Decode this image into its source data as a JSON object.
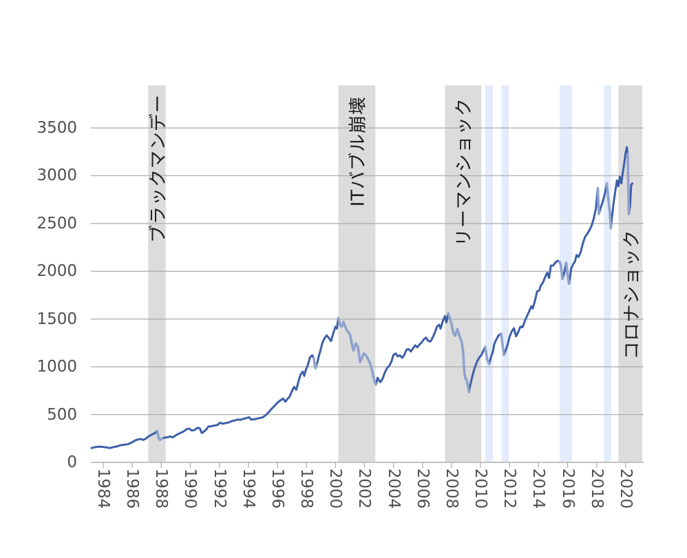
{
  "chart_data": {
    "type": "line",
    "title": "",
    "xlabel": "",
    "ylabel": "",
    "grid": "horizontal",
    "legend": "none",
    "ylim": [
      0,
      3500
    ],
    "xlim": [
      1983.15,
      2021.15
    ],
    "y_ticks": [
      0,
      500,
      1000,
      1500,
      2000,
      2500,
      3000,
      3500
    ],
    "x_ticks": [
      1984,
      1986,
      1988,
      1990,
      1992,
      1994,
      1996,
      1998,
      2000,
      2002,
      2004,
      2006,
      2008,
      2010,
      2012,
      2014,
      2016,
      2018,
      2020
    ],
    "series": [
      {
        "name": "index-price-line",
        "points": [
          [
            1983.2,
            150
          ],
          [
            1983.45,
            160
          ],
          [
            1983.7,
            165
          ],
          [
            1983.95,
            162
          ],
          [
            1984.2,
            157
          ],
          [
            1984.45,
            150
          ],
          [
            1984.7,
            160
          ],
          [
            1984.95,
            167
          ],
          [
            1985.2,
            180
          ],
          [
            1985.45,
            185
          ],
          [
            1985.7,
            190
          ],
          [
            1985.95,
            207
          ],
          [
            1986.2,
            230
          ],
          [
            1986.4,
            240
          ],
          [
            1986.6,
            245
          ],
          [
            1986.75,
            235
          ],
          [
            1986.95,
            250
          ],
          [
            1987.15,
            275
          ],
          [
            1987.35,
            290
          ],
          [
            1987.55,
            305
          ],
          [
            1987.72,
            330
          ],
          [
            1987.82,
            248
          ],
          [
            1987.92,
            235
          ],
          [
            1988.05,
            252
          ],
          [
            1988.2,
            258
          ],
          [
            1988.4,
            262
          ],
          [
            1988.6,
            270
          ],
          [
            1988.8,
            262
          ],
          [
            1988.95,
            278
          ],
          [
            1989.15,
            297
          ],
          [
            1989.35,
            310
          ],
          [
            1989.55,
            325
          ],
          [
            1989.75,
            348
          ],
          [
            1989.95,
            352
          ],
          [
            1990.1,
            332
          ],
          [
            1990.3,
            340
          ],
          [
            1990.5,
            362
          ],
          [
            1990.65,
            356
          ],
          [
            1990.8,
            306
          ],
          [
            1990.95,
            325
          ],
          [
            1991.1,
            345
          ],
          [
            1991.25,
            375
          ],
          [
            1991.45,
            378
          ],
          [
            1991.65,
            385
          ],
          [
            1991.85,
            390
          ],
          [
            1992.05,
            415
          ],
          [
            1992.25,
            405
          ],
          [
            1992.45,
            412
          ],
          [
            1992.65,
            418
          ],
          [
            1992.85,
            432
          ],
          [
            1993.05,
            438
          ],
          [
            1993.25,
            448
          ],
          [
            1993.45,
            445
          ],
          [
            1993.65,
            455
          ],
          [
            1993.85,
            463
          ],
          [
            1994.05,
            472
          ],
          [
            1994.2,
            448
          ],
          [
            1994.4,
            450
          ],
          [
            1994.6,
            458
          ],
          [
            1994.8,
            465
          ],
          [
            1995.0,
            472
          ],
          [
            1995.2,
            495
          ],
          [
            1995.4,
            525
          ],
          [
            1995.6,
            560
          ],
          [
            1995.8,
            590
          ],
          [
            1996.0,
            625
          ],
          [
            1996.2,
            648
          ],
          [
            1996.4,
            668
          ],
          [
            1996.55,
            635
          ],
          [
            1996.7,
            665
          ],
          [
            1996.85,
            690
          ],
          [
            1997.0,
            745
          ],
          [
            1997.15,
            790
          ],
          [
            1997.3,
            760
          ],
          [
            1997.45,
            845
          ],
          [
            1997.6,
            920
          ],
          [
            1997.75,
            950
          ],
          [
            1997.85,
            905
          ],
          [
            1997.95,
            965
          ],
          [
            1998.1,
            1020
          ],
          [
            1998.25,
            1100
          ],
          [
            1998.4,
            1120
          ],
          [
            1998.5,
            1090
          ],
          [
            1998.62,
            985
          ],
          [
            1998.72,
            1020
          ],
          [
            1998.85,
            1110
          ],
          [
            1998.95,
            1160
          ],
          [
            1999.1,
            1250
          ],
          [
            1999.25,
            1300
          ],
          [
            1999.4,
            1330
          ],
          [
            1999.55,
            1300
          ],
          [
            1999.7,
            1270
          ],
          [
            1999.85,
            1350
          ],
          [
            2000.0,
            1420
          ],
          [
            2000.1,
            1400
          ],
          [
            2000.2,
            1510
          ],
          [
            2000.3,
            1450
          ],
          [
            2000.42,
            1420
          ],
          [
            2000.55,
            1470
          ],
          [
            2000.65,
            1430
          ],
          [
            2000.8,
            1380
          ],
          [
            2001.0,
            1340
          ],
          [
            2001.12,
            1250
          ],
          [
            2001.25,
            1170
          ],
          [
            2001.4,
            1245
          ],
          [
            2001.55,
            1210
          ],
          [
            2001.7,
            1050
          ],
          [
            2001.82,
            1090
          ],
          [
            2001.95,
            1140
          ],
          [
            2002.1,
            1120
          ],
          [
            2002.25,
            1080
          ],
          [
            2002.4,
            1030
          ],
          [
            2002.55,
            950
          ],
          [
            2002.7,
            840
          ],
          [
            2002.8,
            815
          ],
          [
            2002.9,
            885
          ],
          [
            2003.0,
            860
          ],
          [
            2003.1,
            840
          ],
          [
            2003.25,
            875
          ],
          [
            2003.4,
            940
          ],
          [
            2003.55,
            985
          ],
          [
            2003.7,
            1010
          ],
          [
            2003.85,
            1050
          ],
          [
            2004.0,
            1125
          ],
          [
            2004.15,
            1140
          ],
          [
            2004.3,
            1110
          ],
          [
            2004.45,
            1120
          ],
          [
            2004.6,
            1095
          ],
          [
            2004.75,
            1125
          ],
          [
            2004.9,
            1180
          ],
          [
            2005.05,
            1185
          ],
          [
            2005.2,
            1160
          ],
          [
            2005.35,
            1195
          ],
          [
            2005.5,
            1225
          ],
          [
            2005.65,
            1205
          ],
          [
            2005.8,
            1235
          ],
          [
            2005.95,
            1255
          ],
          [
            2006.1,
            1290
          ],
          [
            2006.25,
            1305
          ],
          [
            2006.4,
            1270
          ],
          [
            2006.55,
            1265
          ],
          [
            2006.7,
            1305
          ],
          [
            2006.85,
            1360
          ],
          [
            2007.0,
            1420
          ],
          [
            2007.15,
            1440
          ],
          [
            2007.25,
            1400
          ],
          [
            2007.4,
            1480
          ],
          [
            2007.55,
            1530
          ],
          [
            2007.65,
            1465
          ],
          [
            2007.78,
            1560
          ],
          [
            2007.9,
            1500
          ],
          [
            2008.0,
            1450
          ],
          [
            2008.12,
            1360
          ],
          [
            2008.25,
            1325
          ],
          [
            2008.4,
            1395
          ],
          [
            2008.55,
            1320
          ],
          [
            2008.7,
            1260
          ],
          [
            2008.8,
            1160
          ],
          [
            2008.88,
            950
          ],
          [
            2008.95,
            880
          ],
          [
            2009.05,
            860
          ],
          [
            2009.12,
            810
          ],
          [
            2009.2,
            735
          ],
          [
            2009.3,
            815
          ],
          [
            2009.45,
            910
          ],
          [
            2009.6,
            990
          ],
          [
            2009.75,
            1050
          ],
          [
            2009.9,
            1095
          ],
          [
            2010.05,
            1120
          ],
          [
            2010.2,
            1170
          ],
          [
            2010.32,
            1210
          ],
          [
            2010.45,
            1080
          ],
          [
            2010.6,
            1030
          ],
          [
            2010.72,
            1105
          ],
          [
            2010.85,
            1160
          ],
          [
            2010.95,
            1240
          ],
          [
            2011.1,
            1290
          ],
          [
            2011.25,
            1330
          ],
          [
            2011.42,
            1345
          ],
          [
            2011.55,
            1190
          ],
          [
            2011.62,
            1125
          ],
          [
            2011.75,
            1180
          ],
          [
            2011.88,
            1240
          ],
          [
            2012.0,
            1315
          ],
          [
            2012.15,
            1370
          ],
          [
            2012.3,
            1405
          ],
          [
            2012.45,
            1320
          ],
          [
            2012.6,
            1365
          ],
          [
            2012.75,
            1420
          ],
          [
            2012.9,
            1415
          ],
          [
            2013.05,
            1480
          ],
          [
            2013.2,
            1530
          ],
          [
            2013.35,
            1580
          ],
          [
            2013.5,
            1635
          ],
          [
            2013.6,
            1610
          ],
          [
            2013.75,
            1690
          ],
          [
            2013.9,
            1790
          ],
          [
            2014.05,
            1800
          ],
          [
            2014.15,
            1850
          ],
          [
            2014.3,
            1880
          ],
          [
            2014.45,
            1940
          ],
          [
            2014.6,
            1985
          ],
          [
            2014.72,
            1930
          ],
          [
            2014.85,
            2060
          ],
          [
            2015.0,
            2060
          ],
          [
            2015.15,
            2090
          ],
          [
            2015.3,
            2110
          ],
          [
            2015.45,
            2100
          ],
          [
            2015.55,
            2050
          ],
          [
            2015.65,
            1920
          ],
          [
            2015.78,
            1990
          ],
          [
            2015.9,
            2090
          ],
          [
            2016.0,
            1960
          ],
          [
            2016.1,
            1870
          ],
          [
            2016.25,
            2030
          ],
          [
            2016.4,
            2080
          ],
          [
            2016.5,
            2100
          ],
          [
            2016.62,
            2170
          ],
          [
            2016.75,
            2150
          ],
          [
            2016.9,
            2200
          ],
          [
            2017.05,
            2290
          ],
          [
            2017.2,
            2360
          ],
          [
            2017.35,
            2390
          ],
          [
            2017.5,
            2430
          ],
          [
            2017.65,
            2475
          ],
          [
            2017.8,
            2550
          ],
          [
            2017.95,
            2660
          ],
          [
            2018.08,
            2870
          ],
          [
            2018.15,
            2600
          ],
          [
            2018.25,
            2650
          ],
          [
            2018.4,
            2720
          ],
          [
            2018.55,
            2800
          ],
          [
            2018.7,
            2920
          ],
          [
            2018.8,
            2760
          ],
          [
            2018.9,
            2640
          ],
          [
            2018.98,
            2450
          ],
          [
            2019.08,
            2600
          ],
          [
            2019.2,
            2750
          ],
          [
            2019.3,
            2850
          ],
          [
            2019.4,
            2950
          ],
          [
            2019.5,
            2890
          ],
          [
            2019.6,
            2990
          ],
          [
            2019.7,
            2920
          ],
          [
            2019.8,
            3030
          ],
          [
            2019.9,
            3130
          ],
          [
            2020.0,
            3240
          ],
          [
            2020.08,
            3300
          ],
          [
            2020.14,
            3230
          ],
          [
            2020.22,
            2600
          ],
          [
            2020.3,
            2680
          ],
          [
            2020.38,
            2900
          ],
          [
            2020.45,
            2920
          ]
        ]
      }
    ],
    "decline_segments": [
      [
        1987.72,
        1988.05
      ],
      [
        1998.5,
        1998.72
      ],
      [
        2000.2,
        2002.8
      ],
      [
        2007.78,
        2009.2
      ],
      [
        2010.32,
        2010.6
      ],
      [
        2011.42,
        2011.62
      ],
      [
        2015.45,
        2015.65
      ],
      [
        2015.9,
        2016.1
      ],
      [
        2018.08,
        2018.15
      ],
      [
        2018.7,
        2018.98
      ],
      [
        2020.14,
        2020.22
      ]
    ],
    "bands": {
      "gray": [
        [
          1987.1,
          1988.3
        ],
        [
          2000.2,
          2002.75
        ],
        [
          2007.55,
          2010.05
        ],
        [
          2019.5,
          2021.15
        ]
      ],
      "blue": [
        [
          2010.32,
          2010.85
        ],
        [
          2011.45,
          2011.95
        ],
        [
          2015.45,
          2016.3
        ],
        [
          2018.5,
          2019.0
        ]
      ]
    },
    "annotations": [
      {
        "text": "ブラックマンデー",
        "year": 1987.7,
        "cy": 245
      },
      {
        "text": "ITバブル崩壊",
        "year": 2001.45,
        "cy": 220
      },
      {
        "text": "リーマンショック",
        "year": 2008.75,
        "cy": 250
      },
      {
        "text": "コロナショック",
        "year": 2020.35,
        "cy": 428
      }
    ]
  },
  "colors": {
    "line_dark": "#3d5fa9",
    "line_light": "#8fa2cc",
    "band_gray": "#dcdcdc",
    "band_blue": "#e4ecfb",
    "gridline": "#a9a9a9",
    "axis": "#c2c2c2",
    "tick": "#a9a9a9",
    "tick_label": "#4f4f4f",
    "annotation_text": "#1c1c1c",
    "background": "#ffffff"
  }
}
